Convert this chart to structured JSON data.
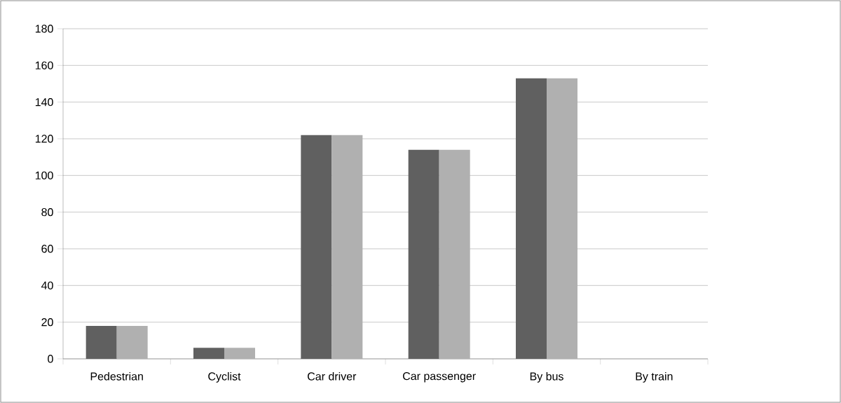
{
  "chart_data": {
    "type": "bar",
    "categories": [
      "Pedestrian",
      "Cyclist",
      "Car driver",
      "Car passenger",
      "By bus",
      "By train"
    ],
    "series": [
      {
        "color": "#606060",
        "values": [
          18,
          6,
          122,
          114,
          153,
          0
        ]
      },
      {
        "color": "#b0b0b0",
        "values": [
          18,
          6,
          122,
          114,
          153,
          0
        ]
      }
    ],
    "ylim": [
      0,
      180
    ],
    "yticks": [
      0,
      20,
      40,
      60,
      80,
      100,
      120,
      140,
      160,
      180
    ],
    "grid": "y"
  }
}
